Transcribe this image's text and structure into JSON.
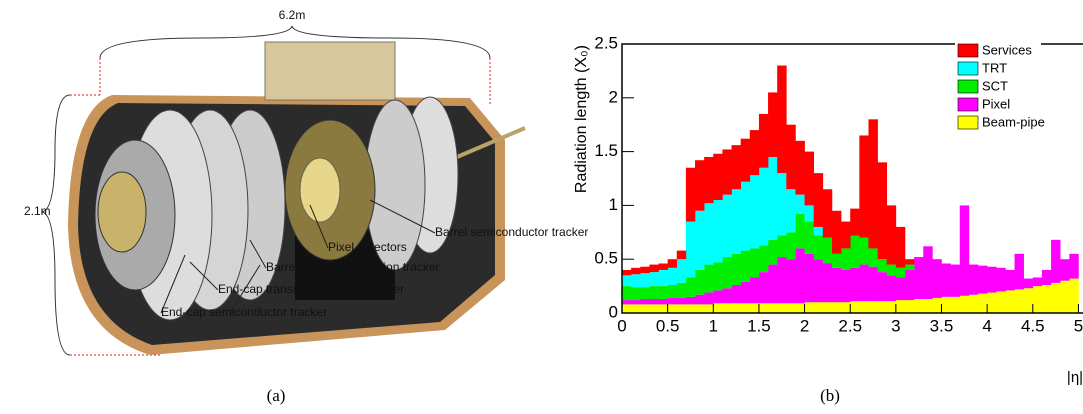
{
  "panel_a": {
    "length": "6.2m",
    "diameter": "2.1m",
    "labels": [
      "Barrel semiconductor tracker",
      "Pixel detectors",
      "Barrel transition radiation tracker",
      "End-cap transition radiation tracker",
      "End-cap semiconductor tracker"
    ],
    "caption": "(a)"
  },
  "chart_data": {
    "type": "histogram",
    "caption": "(b)",
    "y_label": "Radiation length (X₀)",
    "x_label": "|η|",
    "bins": [
      0,
      0.1,
      0.2,
      0.3,
      0.4,
      0.5,
      0.6,
      0.7,
      0.8,
      0.9,
      1.0,
      1.1,
      1.2,
      1.3,
      1.4,
      1.5,
      1.6,
      1.7,
      1.8,
      1.9,
      2.0,
      2.1,
      2.2,
      2.3,
      2.4,
      2.5,
      2.6,
      2.7,
      2.8,
      2.9,
      3.0,
      3.1,
      3.2,
      3.3,
      3.4,
      3.5,
      3.6,
      3.7,
      3.8,
      3.9,
      4.0,
      4.1,
      4.2,
      4.3,
      4.4,
      4.5,
      4.6,
      4.7,
      4.8,
      4.9,
      5.0
    ],
    "stacked": true,
    "series": [
      {
        "name": "Services",
        "color": "#ff0000",
        "values": [
          0.05,
          0.06,
          0.06,
          0.07,
          0.06,
          0.08,
          0.08,
          0.5,
          0.47,
          0.43,
          0.43,
          0.42,
          0.41,
          0.4,
          0.42,
          0.5,
          0.6,
          1.0,
          0.6,
          0.5,
          0.5,
          0.5,
          0.45,
          0.4,
          0.25,
          0.25,
          0.95,
          1.2,
          0.9,
          0.55,
          0.38,
          0.05,
          null,
          null,
          null,
          null,
          null,
          null,
          null,
          null,
          null,
          null,
          null,
          null,
          null,
          null,
          null,
          null,
          null,
          null
        ]
      },
      {
        "name": "TRT",
        "color": "#00ffff",
        "values": [
          0.1,
          0.12,
          0.13,
          0.13,
          0.15,
          0.16,
          0.22,
          0.52,
          0.55,
          0.57,
          0.58,
          0.58,
          0.6,
          0.64,
          0.68,
          0.72,
          0.77,
          0.58,
          0.4,
          0.18,
          0.15,
          0.08,
          null,
          null,
          null,
          null,
          null,
          null,
          null,
          null,
          null,
          null,
          null,
          null,
          null,
          null,
          null,
          null,
          null,
          null,
          null,
          null,
          null,
          null,
          null,
          null,
          null,
          null,
          null,
          null
        ]
      },
      {
        "name": "SCT",
        "color": "#00ee00",
        "values": [
          0.13,
          0.12,
          0.11,
          0.12,
          0.12,
          0.12,
          0.14,
          0.18,
          0.23,
          0.26,
          0.26,
          0.29,
          0.29,
          0.29,
          0.27,
          0.25,
          0.23,
          0.2,
          0.25,
          0.32,
          0.3,
          0.22,
          0.24,
          0.13,
          0.2,
          0.3,
          0.25,
          0.17,
          0.12,
          0.1,
          0.09,
          0.05,
          null,
          null,
          null,
          null,
          null,
          null,
          null,
          null,
          null,
          null,
          null,
          null,
          null,
          null,
          null,
          null,
          null,
          null
        ]
      },
      {
        "name": "Pixel",
        "color": "#ff00ff",
        "values": [
          0.04,
          0.04,
          0.05,
          0.05,
          0.05,
          0.06,
          0.06,
          0.07,
          0.09,
          0.11,
          0.12,
          0.14,
          0.17,
          0.2,
          0.24,
          0.29,
          0.36,
          0.43,
          0.41,
          0.51,
          0.45,
          0.4,
          0.36,
          0.32,
          0.3,
          0.31,
          0.34,
          0.32,
          0.27,
          0.24,
          0.21,
          0.28,
          0.39,
          0.49,
          0.36,
          0.31,
          0.3,
          0.84,
          0.28,
          0.26,
          0.24,
          0.22,
          0.19,
          0.33,
          0.09,
          0.08,
          0.14,
          0.4,
          0.2,
          0.23
        ]
      },
      {
        "name": "Beam-pipe",
        "color": "#ffff00",
        "values": [
          0.08,
          0.08,
          0.08,
          0.08,
          0.08,
          0.08,
          0.08,
          0.08,
          0.08,
          0.08,
          0.09,
          0.09,
          0.09,
          0.09,
          0.09,
          0.09,
          0.09,
          0.09,
          0.09,
          0.09,
          0.1,
          0.1,
          0.1,
          0.1,
          0.1,
          0.11,
          0.11,
          0.11,
          0.11,
          0.11,
          0.12,
          0.12,
          0.13,
          0.13,
          0.14,
          0.15,
          0.15,
          0.16,
          0.17,
          0.18,
          0.19,
          0.2,
          0.21,
          0.22,
          0.23,
          0.25,
          0.26,
          0.28,
          0.3,
          0.32
        ]
      }
    ],
    "xlim": [
      0,
      5.05
    ],
    "ylim": [
      0,
      2.5
    ],
    "xticks": [
      0,
      0.5,
      1,
      1.5,
      2,
      2.5,
      3,
      3.5,
      4,
      4.5,
      5
    ],
    "yticks": [
      0,
      0.5,
      1,
      1.5,
      2,
      2.5
    ],
    "legend": "top-right"
  }
}
